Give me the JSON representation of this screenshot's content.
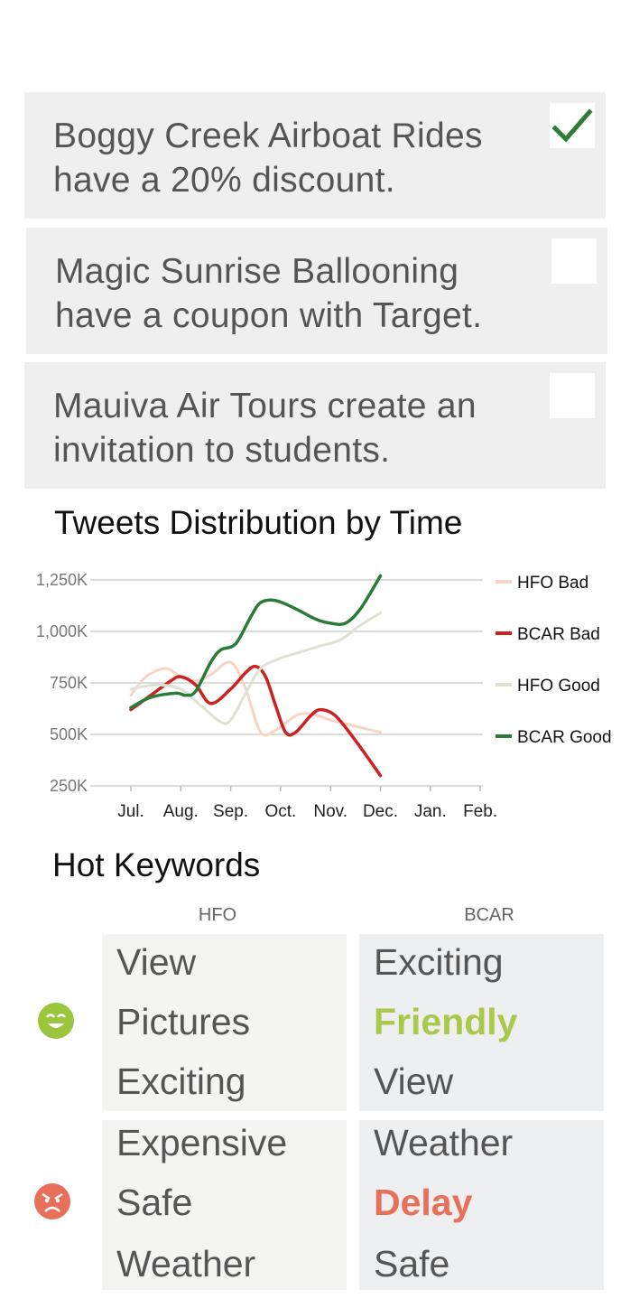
{
  "tasks": [
    {
      "text": "Boggy Creek Airboat Rides\nhave a 20% discount.",
      "checked": true
    },
    {
      "text": "Magic Sunrise Ballooning\nhave a coupon with Target.",
      "checked": false
    },
    {
      "text": "Mauiva Air Tours create an\ninvitation to students.",
      "checked": false
    }
  ],
  "colors": {
    "check": "#2e7d32",
    "hfo_bad": "#f8d4c4",
    "bcar_bad": "#cc2222",
    "hfo_good": "#dde3d4",
    "bcar_good": "#2a7a38",
    "good_face": "#9bc53d",
    "bad_face": "#e8705a"
  },
  "chart_data": {
    "type": "line",
    "title": "Tweets Distribution by Time",
    "x": [
      "Jul.",
      "Aug.",
      "Sep.",
      "Oct.",
      "Nov.",
      "Dec.",
      "Jan.",
      "Feb."
    ],
    "y_ticks": [
      "250K",
      "500K",
      "750K",
      "1,000K",
      "1,250K"
    ],
    "ylim": [
      250,
      1250
    ],
    "y_unit": "K",
    "legend_position": "right",
    "series": [
      {
        "name": "HFO Bad",
        "color": "#f8d4c4",
        "points": [
          [
            0,
            690
          ],
          [
            0.3,
            780
          ],
          [
            0.7,
            820
          ],
          [
            1.0,
            780
          ],
          [
            1.3,
            760
          ],
          [
            1.6,
            790
          ],
          [
            2.0,
            850
          ],
          [
            2.3,
            720
          ],
          [
            2.6,
            510
          ],
          [
            2.9,
            520
          ],
          [
            3.3,
            590
          ],
          [
            3.6,
            600
          ],
          [
            4.0,
            570
          ],
          [
            4.5,
            540
          ],
          [
            5.0,
            510
          ]
        ]
      },
      {
        "name": "BCAR Bad",
        "color": "#cc2222",
        "points": [
          [
            0,
            620
          ],
          [
            0.4,
            690
          ],
          [
            0.8,
            760
          ],
          [
            1.0,
            780
          ],
          [
            1.3,
            740
          ],
          [
            1.6,
            650
          ],
          [
            2.0,
            720
          ],
          [
            2.3,
            800
          ],
          [
            2.5,
            830
          ],
          [
            2.7,
            780
          ],
          [
            2.9,
            640
          ],
          [
            3.1,
            510
          ],
          [
            3.3,
            510
          ],
          [
            3.6,
            590
          ],
          [
            3.8,
            620
          ],
          [
            4.1,
            590
          ],
          [
            4.5,
            470
          ],
          [
            5.0,
            300
          ]
        ]
      },
      {
        "name": "HFO Good",
        "color": "#dde3d4",
        "points": [
          [
            0,
            720
          ],
          [
            0.5,
            740
          ],
          [
            1.0,
            720
          ],
          [
            1.4,
            640
          ],
          [
            1.8,
            560
          ],
          [
            2.0,
            570
          ],
          [
            2.3,
            700
          ],
          [
            2.6,
            820
          ],
          [
            3.0,
            870
          ],
          [
            3.4,
            900
          ],
          [
            3.8,
            930
          ],
          [
            4.2,
            960
          ],
          [
            4.6,
            1030
          ],
          [
            5.0,
            1090
          ]
        ]
      },
      {
        "name": "BCAR Good",
        "color": "#2a7a38",
        "points": [
          [
            0,
            630
          ],
          [
            0.4,
            680
          ],
          [
            0.9,
            700
          ],
          [
            1.1,
            690
          ],
          [
            1.3,
            710
          ],
          [
            1.6,
            850
          ],
          [
            1.8,
            910
          ],
          [
            2.1,
            940
          ],
          [
            2.4,
            1070
          ],
          [
            2.6,
            1140
          ],
          [
            2.9,
            1150
          ],
          [
            3.3,
            1110
          ],
          [
            3.7,
            1060
          ],
          [
            4.0,
            1040
          ],
          [
            4.3,
            1040
          ],
          [
            4.6,
            1110
          ],
          [
            5.0,
            1270
          ]
        ]
      }
    ]
  },
  "keywords": {
    "title": "Hot Keywords",
    "columns": [
      "HFO",
      "BCAR"
    ],
    "good_row": {
      "face": "happy-face",
      "hfo": [
        "View",
        "Pictures",
        "Exciting"
      ],
      "bcar": [
        "Exciting",
        "Friendly",
        "View"
      ],
      "bcar_highlight": "Friendly"
    },
    "bad_row": {
      "face": "angry-face",
      "hfo": [
        "Expensive",
        "Safe",
        "Weather"
      ],
      "bcar": [
        "Weather",
        "Delay",
        "Safe"
      ],
      "bcar_highlight": "Delay"
    }
  }
}
